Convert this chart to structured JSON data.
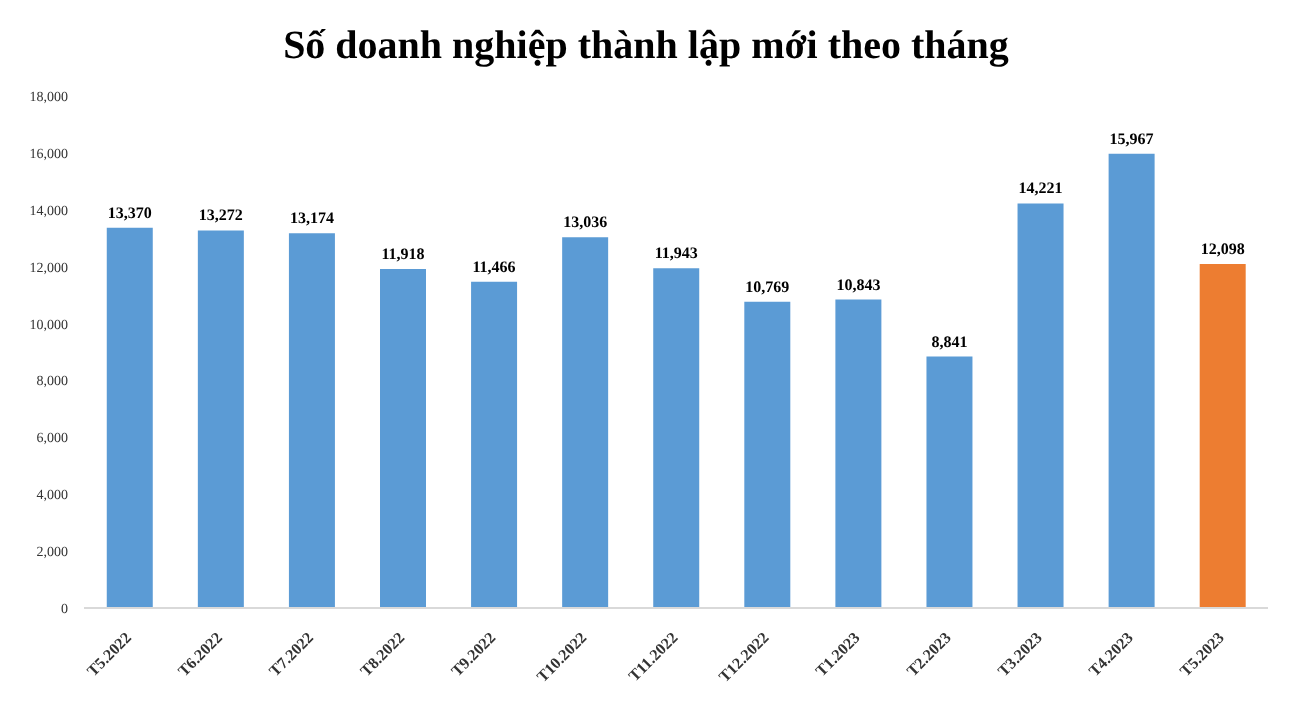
{
  "chart_data": {
    "type": "bar",
    "title": "Số doanh nghiệp thành lập mới theo tháng",
    "categories": [
      "T5.2022",
      "T6.2022",
      "T7.2022",
      "T8.2022",
      "T9.2022",
      "T10.2022",
      "T11.2022",
      "T12.2022",
      "T1.2023",
      "T2.2023",
      "T3.2023",
      "T4.2023",
      "T5.2023"
    ],
    "values": [
      13370,
      13272,
      13174,
      11918,
      11466,
      13036,
      11943,
      10769,
      10843,
      8841,
      14221,
      15967,
      12098
    ],
    "colors": [
      "#5b9bd5",
      "#5b9bd5",
      "#5b9bd5",
      "#5b9bd5",
      "#5b9bd5",
      "#5b9bd5",
      "#5b9bd5",
      "#5b9bd5",
      "#5b9bd5",
      "#5b9bd5",
      "#5b9bd5",
      "#5b9bd5",
      "#ed7d31"
    ],
    "ylim": [
      0,
      18000
    ],
    "yticks": [
      {
        "value": 0,
        "label": "0"
      },
      {
        "value": 2000,
        "label": "2,000"
      },
      {
        "value": 4000,
        "label": "4,000"
      },
      {
        "value": 6000,
        "label": "6,000"
      },
      {
        "value": 8000,
        "label": "8,000"
      },
      {
        "value": 10000,
        "label": "10,000"
      },
      {
        "value": 12000,
        "label": "12,000"
      },
      {
        "value": 14000,
        "label": "14,000"
      },
      {
        "value": 16000,
        "label": "16,000"
      },
      {
        "value": 18000,
        "label": "18,000"
      }
    ],
    "value_labels": [
      "13,370",
      "13,272",
      "13,174",
      "11,918",
      "11,466",
      "13,036",
      "11,943",
      "10,769",
      "10,843",
      "8,841",
      "14,221",
      "15,967",
      "12,098"
    ],
    "grid": false
  }
}
